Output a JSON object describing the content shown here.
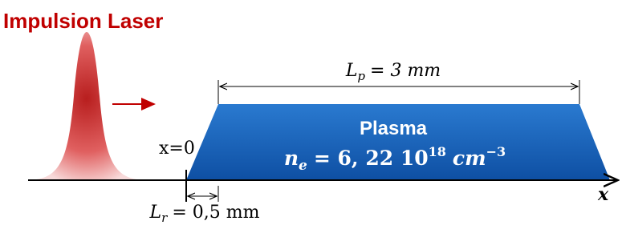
{
  "title": "Impulsion Laser",
  "plasma_length": {
    "symbol": "L",
    "subscript": "p",
    "expression": "= 3 mm"
  },
  "plasma": {
    "label": "Plasma",
    "symbol": "n",
    "subscript": "e",
    "expression": "= 6, 22 10",
    "exponent": "18",
    "unit": "cm",
    "unit_exponent": "−3"
  },
  "origin_label": "x=0",
  "axis_label": "x",
  "ramp_length": {
    "symbol": "L",
    "subscript": "r",
    "expression": "= 0,5 mm"
  }
}
